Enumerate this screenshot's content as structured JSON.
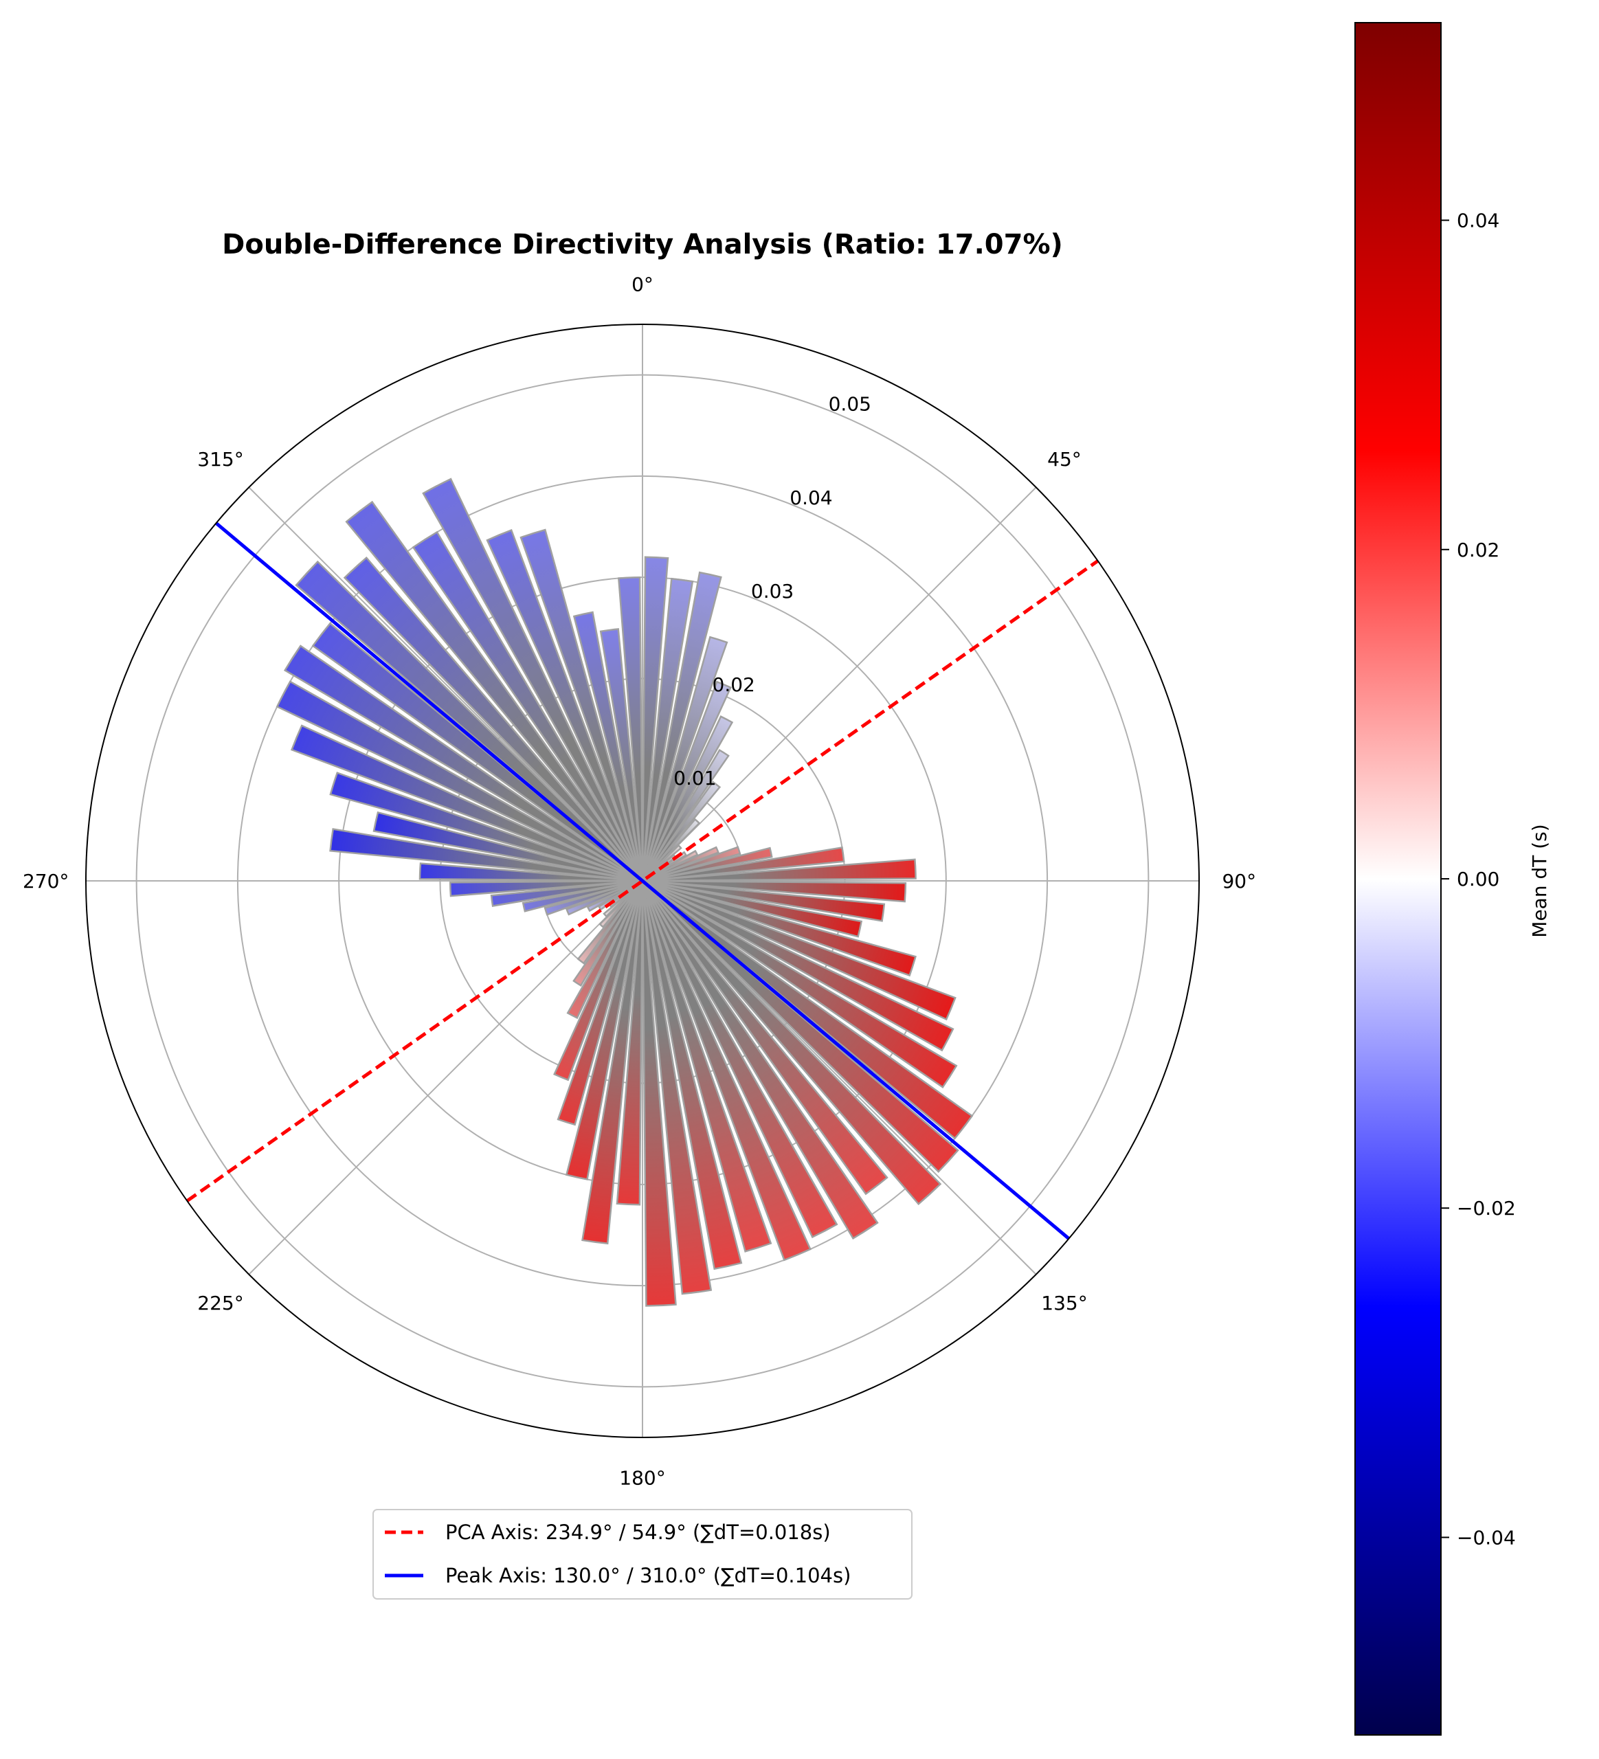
{
  "chart_data": {
    "type": "polar-bar",
    "title": "Double-Difference Directivity Analysis (Ratio: 17.07%)",
    "theta_direction": "clockwise",
    "theta_zero": "north",
    "angle_tick_labels": [
      "0°",
      "45°",
      "90°",
      "135°",
      "180°",
      "225°",
      "270°",
      "315°"
    ],
    "radial_tick_labels": [
      "0.01",
      "0.02",
      "0.03",
      "0.04",
      "0.05"
    ],
    "radial_ticks": [
      0.01,
      0.02,
      0.03,
      0.04,
      0.05
    ],
    "rlim": [
      0,
      0.055
    ],
    "grid": true,
    "bin_width_deg": 5,
    "bars": {
      "theta_deg": [
        2.5,
        7.5,
        12.5,
        17.5,
        22.5,
        27.5,
        32.5,
        37.5,
        42.5,
        47.5,
        52.5,
        57.5,
        62.5,
        67.5,
        72.5,
        77.5,
        82.5,
        87.5,
        92.5,
        97.5,
        102.5,
        107.5,
        112.5,
        117.5,
        122.5,
        127.5,
        132.5,
        137.5,
        142.5,
        147.5,
        152.5,
        157.5,
        162.5,
        167.5,
        172.5,
        177.5,
        182.5,
        187.5,
        192.5,
        197.5,
        202.5,
        207.5,
        212.5,
        217.5,
        222.5,
        227.5,
        232.5,
        237.5,
        242.5,
        247.5,
        252.5,
        257.5,
        262.5,
        267.5,
        272.5,
        277.5,
        282.5,
        287.5,
        292.5,
        297.5,
        302.5,
        307.5,
        312.5,
        317.5,
        322.5,
        327.5,
        332.5,
        337.5,
        342.5,
        347.5,
        352.5,
        357.5
      ],
      "radius": [
        0.032,
        0.03,
        0.031,
        0.025,
        0.021,
        0.018,
        0.015,
        0.012,
        0.008,
        0.005,
        0.004,
        0.005,
        0.006,
        0.008,
        0.01,
        0.013,
        0.02,
        0.027,
        0.026,
        0.024,
        0.022,
        0.028,
        0.033,
        0.034,
        0.036,
        0.04,
        0.041,
        0.042,
        0.038,
        0.041,
        0.039,
        0.04,
        0.038,
        0.039,
        0.041,
        0.042,
        0.032,
        0.036,
        0.03,
        0.025,
        0.021,
        0.015,
        0.012,
        0.01,
        0.006,
        0.005,
        0.004,
        0.005,
        0.006,
        0.008,
        0.01,
        0.012,
        0.015,
        0.019,
        0.022,
        0.031,
        0.027,
        0.032,
        0.037,
        0.04,
        0.041,
        0.04,
        0.045,
        0.042,
        0.046,
        0.04,
        0.044,
        0.037,
        0.036,
        0.027,
        0.025,
        0.03
      ],
      "mean_dT": [
        -0.012,
        -0.01,
        -0.01,
        -0.006,
        -0.005,
        -0.004,
        -0.003,
        -0.002,
        -0.001,
        0.001,
        0.002,
        0.003,
        0.005,
        0.008,
        0.011,
        0.016,
        0.02,
        0.024,
        0.027,
        0.028,
        0.028,
        0.027,
        0.026,
        0.025,
        0.024,
        0.023,
        0.022,
        0.021,
        0.02,
        0.02,
        0.02,
        0.02,
        0.02,
        0.021,
        0.021,
        0.022,
        0.022,
        0.023,
        0.023,
        0.022,
        0.02,
        0.015,
        0.01,
        0.006,
        0.003,
        0.001,
        -0.002,
        -0.004,
        -0.006,
        -0.008,
        -0.011,
        -0.014,
        -0.017,
        -0.02,
        -0.022,
        -0.023,
        -0.023,
        -0.022,
        -0.021,
        -0.02,
        -0.019,
        -0.018,
        -0.017,
        -0.017,
        -0.016,
        -0.016,
        -0.015,
        -0.015,
        -0.014,
        -0.014,
        -0.013,
        -0.013
      ]
    },
    "series": [
      {
        "name": "PCA Axis: 234.9° / 54.9° (∑dT=0.018s)",
        "angles_deg": [
          234.9,
          54.9
        ],
        "color": "#ff0000",
        "style": "dashed"
      },
      {
        "name": "Peak Axis: 130.0° / 310.0° (∑dT=0.104s)",
        "angles_deg": [
          130.0,
          310.0
        ],
        "color": "#0000ff",
        "style": "solid"
      }
    ],
    "legend_position": "lower-center",
    "colorbar": {
      "label": "Mean dT (s)",
      "cmap": "seismic",
      "vmin": -0.052,
      "vmax": 0.052,
      "tick_values": [
        -0.04,
        -0.02,
        0.0,
        0.02,
        0.04
      ],
      "tick_labels": [
        "−0.04",
        "−0.02",
        "0.00",
        "0.02",
        "0.04"
      ]
    },
    "bar_edge_color": "#a0a0a0"
  }
}
